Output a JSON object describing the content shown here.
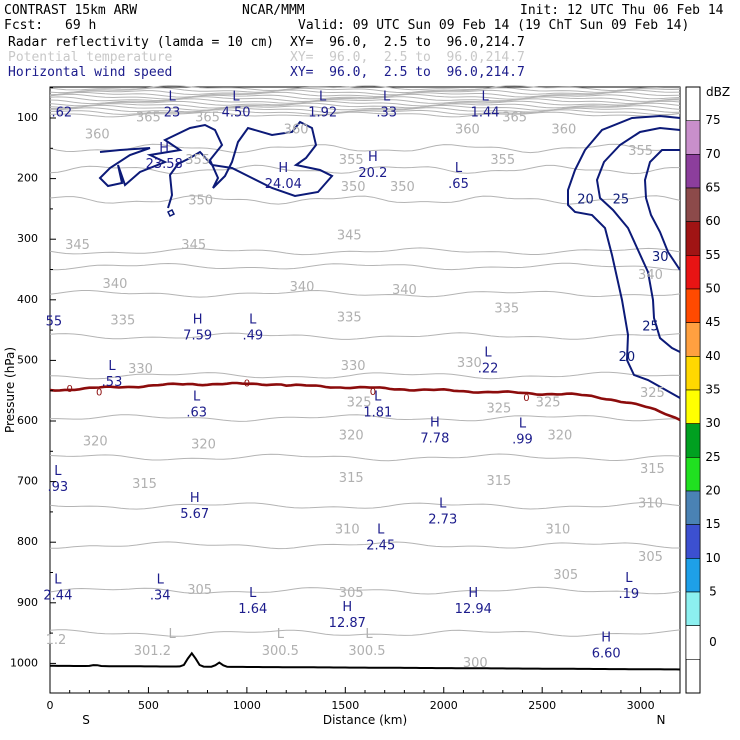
{
  "header": {
    "model": "CONTRAST 15km ARW",
    "org": "NCAR/MMM",
    "init": "Init: 12 UTC Thu 06 Feb 14",
    "fcst_label": "Fcst:",
    "fcst_value": "69 h",
    "valid": "Valid: 09 UTC Sun 09 Feb 14 (19 ChT Sun 09 Feb 14)"
  },
  "legend_rows": [
    {
      "name": "Radar reflectivity (lamda = 10 cm)",
      "xy": "XY=  96.0,  2.5 to  96.0,214.7",
      "color": "#000000"
    },
    {
      "name": "Potential temperature",
      "xy": "XY=  96.0,  2.5 to  96.0,214.7",
      "color": "#c8c8c8"
    },
    {
      "name": "Horizontal wind speed",
      "xy": "XY=  96.0,  2.5 to  96.0,214.7",
      "color": "#1c1c8c"
    }
  ],
  "colors": {
    "theta": "#b4b4b4",
    "wind": "#0c1a78",
    "freezing": "#8c0c0c",
    "terrain": "#000000"
  },
  "chart_data": {
    "type": "cross-section",
    "xlabel": "Distance (km)",
    "ylabel": "Pressure (hPa)",
    "xlim": [
      0,
      3200
    ],
    "ylim": [
      1050,
      50
    ],
    "x_ticks": [
      "0",
      "500",
      "1000",
      "1500",
      "2000",
      "2500",
      "3000"
    ],
    "y_ticks": [
      "100",
      "200",
      "300",
      "400",
      "500",
      "600",
      "700",
      "800",
      "900",
      "1000"
    ],
    "end_labels": {
      "left": "S",
      "right": "N"
    },
    "dbz_title": "dBZ",
    "dbz_scale": [
      {
        "label": "75",
        "color": "#c98fcb"
      },
      {
        "label": "70",
        "color": "#8c3e9c"
      },
      {
        "label": "65",
        "color": "#8c4a4a"
      },
      {
        "label": "60",
        "color": "#a01414"
      },
      {
        "label": "55",
        "color": "#e81414"
      },
      {
        "label": "50",
        "color": "#ff4a00"
      },
      {
        "label": "45",
        "color": "#ffa040"
      },
      {
        "label": "40",
        "color": "#ffd800"
      },
      {
        "label": "35",
        "color": "#ffff00"
      },
      {
        "label": "30",
        "color": "#00a020"
      },
      {
        "label": "25",
        "color": "#20e020"
      },
      {
        "label": "20",
        "color": "#4a82b4"
      },
      {
        "label": "15",
        "color": "#3c50d0"
      },
      {
        "label": "10",
        "color": "#1ea0e8"
      },
      {
        "label": "5",
        "color": "#8cf0f0"
      },
      {
        "label": "0",
        "color": "#ffffff"
      }
    ],
    "theta_labels": [
      {
        "text": "365",
        "x": 500,
        "p": 100
      },
      {
        "text": "365",
        "x": 800,
        "p": 100
      },
      {
        "text": "365",
        "x": 2360,
        "p": 100
      },
      {
        "text": "360",
        "x": 240,
        "p": 128
      },
      {
        "text": "360",
        "x": 1250,
        "p": 120
      },
      {
        "text": "360",
        "x": 2120,
        "p": 120
      },
      {
        "text": "360",
        "x": 2610,
        "p": 120
      },
      {
        "text": "355",
        "x": 750,
        "p": 170
      },
      {
        "text": "355",
        "x": 1530,
        "p": 170
      },
      {
        "text": "355",
        "x": 2300,
        "p": 170
      },
      {
        "text": "355",
        "x": 3000,
        "p": 155
      },
      {
        "text": "350",
        "x": 765,
        "p": 237
      },
      {
        "text": "350",
        "x": 1540,
        "p": 215
      },
      {
        "text": "350",
        "x": 1790,
        "p": 215
      },
      {
        "text": "345",
        "x": 140,
        "p": 310
      },
      {
        "text": "345",
        "x": 730,
        "p": 310
      },
      {
        "text": "345",
        "x": 1520,
        "p": 295
      },
      {
        "text": "340",
        "x": 330,
        "p": 375
      },
      {
        "text": "340",
        "x": 1280,
        "p": 380
      },
      {
        "text": "340",
        "x": 1800,
        "p": 385
      },
      {
        "text": "340",
        "x": 3050,
        "p": 360
      },
      {
        "text": "335",
        "x": 370,
        "p": 435
      },
      {
        "text": "335",
        "x": 1520,
        "p": 430
      },
      {
        "text": "335",
        "x": 2320,
        "p": 415
      },
      {
        "text": "330",
        "x": 460,
        "p": 515
      },
      {
        "text": "330",
        "x": 1540,
        "p": 510
      },
      {
        "text": "330",
        "x": 2130,
        "p": 505
      },
      {
        "text": "325",
        "x": 1570,
        "p": 570
      },
      {
        "text": "325",
        "x": 2280,
        "p": 580
      },
      {
        "text": "325",
        "x": 2530,
        "p": 570
      },
      {
        "text": "325",
        "x": 3060,
        "p": 555
      },
      {
        "text": "320",
        "x": 230,
        "p": 635
      },
      {
        "text": "320",
        "x": 780,
        "p": 640
      },
      {
        "text": "320",
        "x": 1530,
        "p": 625
      },
      {
        "text": "320",
        "x": 2590,
        "p": 625
      },
      {
        "text": "315",
        "x": 480,
        "p": 705
      },
      {
        "text": "315",
        "x": 1530,
        "p": 695
      },
      {
        "text": "315",
        "x": 2280,
        "p": 700
      },
      {
        "text": "315",
        "x": 3060,
        "p": 680
      },
      {
        "text": "310",
        "x": 1510,
        "p": 780
      },
      {
        "text": "310",
        "x": 2580,
        "p": 780
      },
      {
        "text": "310",
        "x": 3050,
        "p": 737
      },
      {
        "text": "305",
        "x": 760,
        "p": 880
      },
      {
        "text": "305",
        "x": 1530,
        "p": 885
      },
      {
        "text": "305",
        "x": 2620,
        "p": 855
      },
      {
        "text": "305",
        "x": 3050,
        "p": 825
      },
      {
        "text": "300",
        "x": 2160,
        "p": 1000
      },
      {
        "text": "1.2",
        "x": 30,
        "p": 962
      },
      {
        "text": "301.2",
        "x": 520,
        "p": 980
      },
      {
        "text": "300.5",
        "x": 1170,
        "p": 980
      },
      {
        "text": "300.5",
        "x": 1610,
        "p": 980
      }
    ],
    "theta_extrema": [
      {
        "text": "L",
        "x": 620,
        "p": 952
      },
      {
        "text": "L",
        "x": 1170,
        "p": 952
      },
      {
        "text": "L",
        "x": 1620,
        "p": 952
      }
    ],
    "wind_extrema": [
      {
        "mark": "L",
        "value": "23",
        "x": 620,
        "p": 65
      },
      {
        "mark": "L",
        "value": "4.50",
        "x": 945,
        "p": 65
      },
      {
        "mark": "L",
        "value": "1.92",
        "x": 1385,
        "p": 65
      },
      {
        "mark": "L",
        "value": ".33",
        "x": 1710,
        "p": 65
      },
      {
        "mark": "L",
        "value": "1.44",
        "x": 2210,
        "p": 65
      },
      {
        "mark": "H",
        "value": "23.58",
        "x": 580,
        "p": 150
      },
      {
        "mark": "H",
        "value": "24.04",
        "x": 1185,
        "p": 183
      },
      {
        "mark": "H",
        "value": "20.2",
        "x": 1640,
        "p": 165
      },
      {
        "mark": "L",
        "value": ".65",
        "x": 2075,
        "p": 183
      },
      {
        "mark": "H",
        "value": "7.59",
        "x": 750,
        "p": 433
      },
      {
        "mark": "L",
        "value": ".49",
        "x": 1030,
        "p": 433
      },
      {
        "mark": "L",
        "value": ".22",
        "x": 2225,
        "p": 488
      },
      {
        "mark": "L",
        "value": ".53",
        "x": 315,
        "p": 510
      },
      {
        "mark": "L",
        "value": ".63",
        "x": 745,
        "p": 560
      },
      {
        "mark": "L",
        "value": "1.81",
        "x": 1665,
        "p": 560
      },
      {
        "mark": "H",
        "value": "7.78",
        "x": 1955,
        "p": 603
      },
      {
        "mark": "L",
        "value": ".99",
        "x": 2400,
        "p": 605
      },
      {
        "mark": "L",
        "value": ".93",
        "x": 40,
        "p": 683
      },
      {
        "mark": "H",
        "value": "5.67",
        "x": 735,
        "p": 728
      },
      {
        "mark": "L",
        "value": "2.73",
        "x": 1995,
        "p": 737
      },
      {
        "mark": "L",
        "value": "2.45",
        "x": 1680,
        "p": 780
      },
      {
        "mark": "L",
        "value": "2.44",
        "x": 40,
        "p": 862
      },
      {
        "mark": "L",
        "value": ".34",
        "x": 560,
        "p": 862
      },
      {
        "mark": "L",
        "value": ".19",
        "x": 2940,
        "p": 860
      },
      {
        "mark": "L",
        "value": "1.64",
        "x": 1030,
        "p": 885
      },
      {
        "mark": "H",
        "value": "12.94",
        "x": 2150,
        "p": 885
      },
      {
        "mark": "H",
        "value": "12.87",
        "x": 1510,
        "p": 908
      },
      {
        "mark": "H",
        "value": "6.60",
        "x": 2825,
        "p": 958
      }
    ],
    "wind_edge_labels": [
      {
        "text": ".62",
        "x": 60,
        "p": 92
      },
      {
        "text": "55",
        "x": 20,
        "p": 437
      }
    ],
    "wind_contour_labels": [
      {
        "text": "20",
        "x": 2720,
        "p": 235
      },
      {
        "text": "25",
        "x": 2900,
        "p": 235
      },
      {
        "text": "30",
        "x": 3100,
        "p": 330
      },
      {
        "text": "25",
        "x": 3050,
        "p": 445
      },
      {
        "text": "20",
        "x": 2930,
        "p": 495
      }
    ],
    "freezing_level_labels": [
      {
        "text": "0",
        "x": 100,
        "p": 547
      },
      {
        "text": "0",
        "x": 250,
        "p": 553
      },
      {
        "text": "0",
        "x": 1000,
        "p": 538
      },
      {
        "text": "0",
        "x": 1640,
        "p": 552
      },
      {
        "text": "0",
        "x": 2420,
        "p": 562
      }
    ]
  }
}
